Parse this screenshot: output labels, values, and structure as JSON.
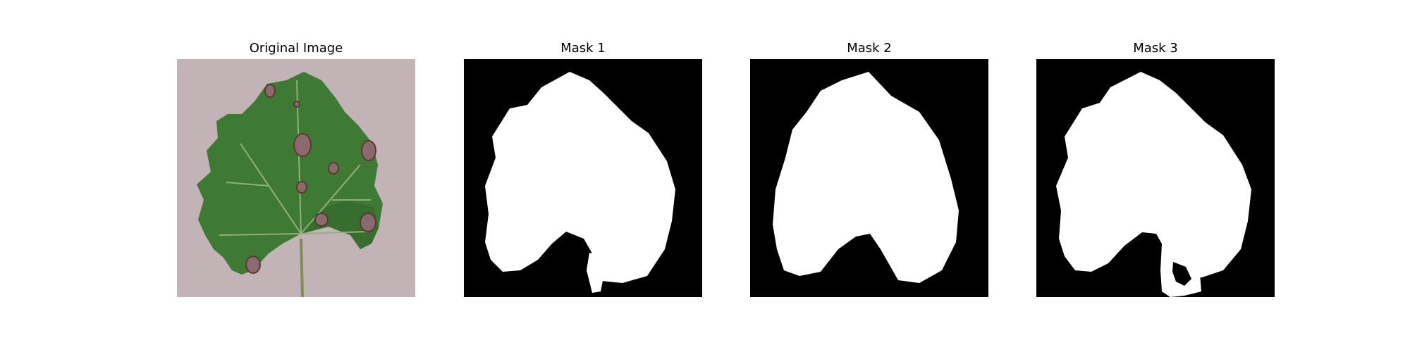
{
  "figure": {
    "panels": [
      {
        "title": "Original Image"
      },
      {
        "title": "Mask 1"
      },
      {
        "title": "Mask 2"
      },
      {
        "title": "Mask 3"
      }
    ]
  },
  "colors": {
    "background": "#c2b3b6",
    "leaf": "#3f7a35",
    "leaf_dark": "#2f5f2a",
    "vein": "#8fb07a",
    "lesion": "#8a6a6e",
    "mask_bg": "#000000",
    "mask_fg": "#ffffff"
  }
}
